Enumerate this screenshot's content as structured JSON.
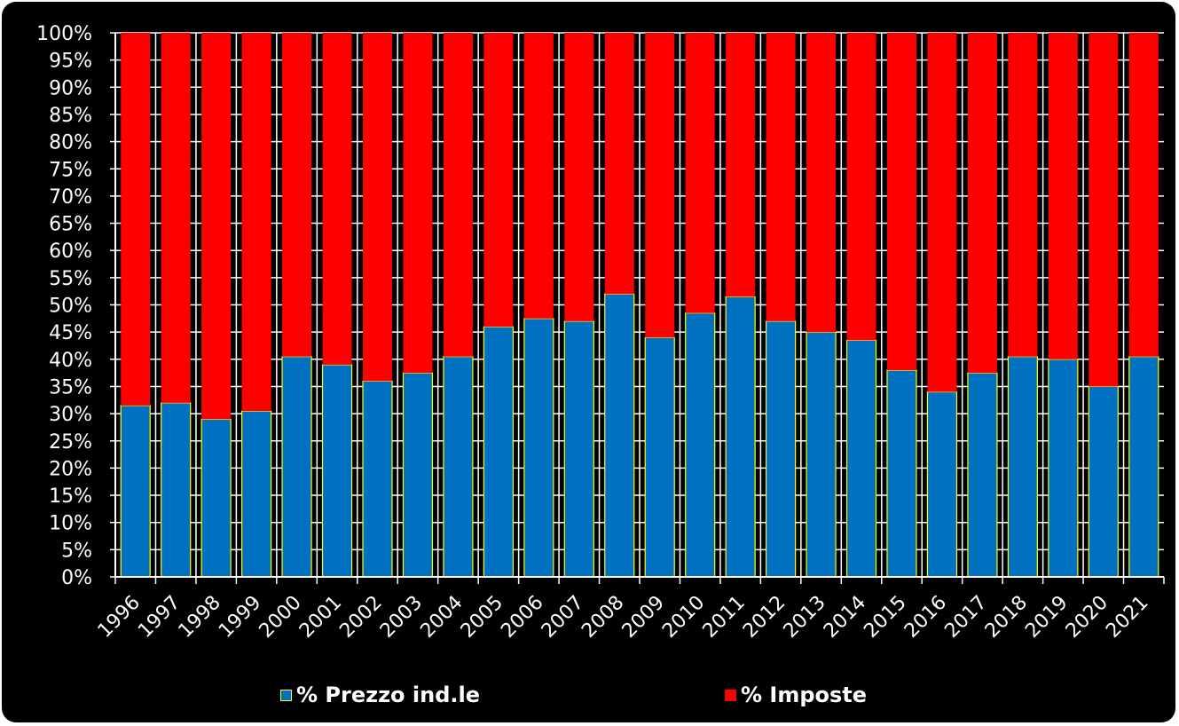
{
  "colors": {
    "background": "#000000",
    "prezzo": "#0070C0",
    "prezzo_border": "#FFFF00",
    "imposte": "#FF0000",
    "grid": "#FFFFFF",
    "text": "#FFFFFF"
  },
  "legend": {
    "prezzo_label": "% Prezzo ind.le",
    "imposte_label": "% Imposte"
  },
  "chart_data": {
    "type": "bar",
    "stacked": true,
    "percent_stacked": true,
    "title": "",
    "xlabel": "",
    "ylabel": "",
    "ylim": [
      0,
      100
    ],
    "y_ticks": [
      "0%",
      "5%",
      "10%",
      "15%",
      "20%",
      "25%",
      "30%",
      "35%",
      "40%",
      "45%",
      "50%",
      "55%",
      "60%",
      "65%",
      "70%",
      "75%",
      "80%",
      "85%",
      "90%",
      "95%",
      "100%"
    ],
    "grid": true,
    "legend_position": "bottom",
    "categories": [
      "1996",
      "1997",
      "1998",
      "1999",
      "2000",
      "2001",
      "2002",
      "2003",
      "2004",
      "2005",
      "2006",
      "2007",
      "2008",
      "2009",
      "2010",
      "2011",
      "2012",
      "2013",
      "2014",
      "2015",
      "2016",
      "2017",
      "2018",
      "2019",
      "2020",
      "2021"
    ],
    "series": [
      {
        "name": "% Prezzo ind.le",
        "values": [
          31.5,
          32,
          29,
          30.5,
          40.5,
          39,
          36,
          37.5,
          40.5,
          46,
          47.5,
          47,
          52,
          44,
          48.5,
          51.5,
          47,
          45,
          43.5,
          38,
          34,
          37.5,
          40.5,
          40,
          35,
          40.5
        ]
      },
      {
        "name": "% Imposte",
        "values": [
          68.5,
          68,
          71,
          69.5,
          59.5,
          61,
          64,
          62.5,
          59.5,
          54,
          52.5,
          53,
          48,
          56,
          51.5,
          48.5,
          53,
          55,
          56.5,
          62,
          66,
          62.5,
          59.5,
          60,
          65,
          59.5
        ]
      }
    ]
  }
}
